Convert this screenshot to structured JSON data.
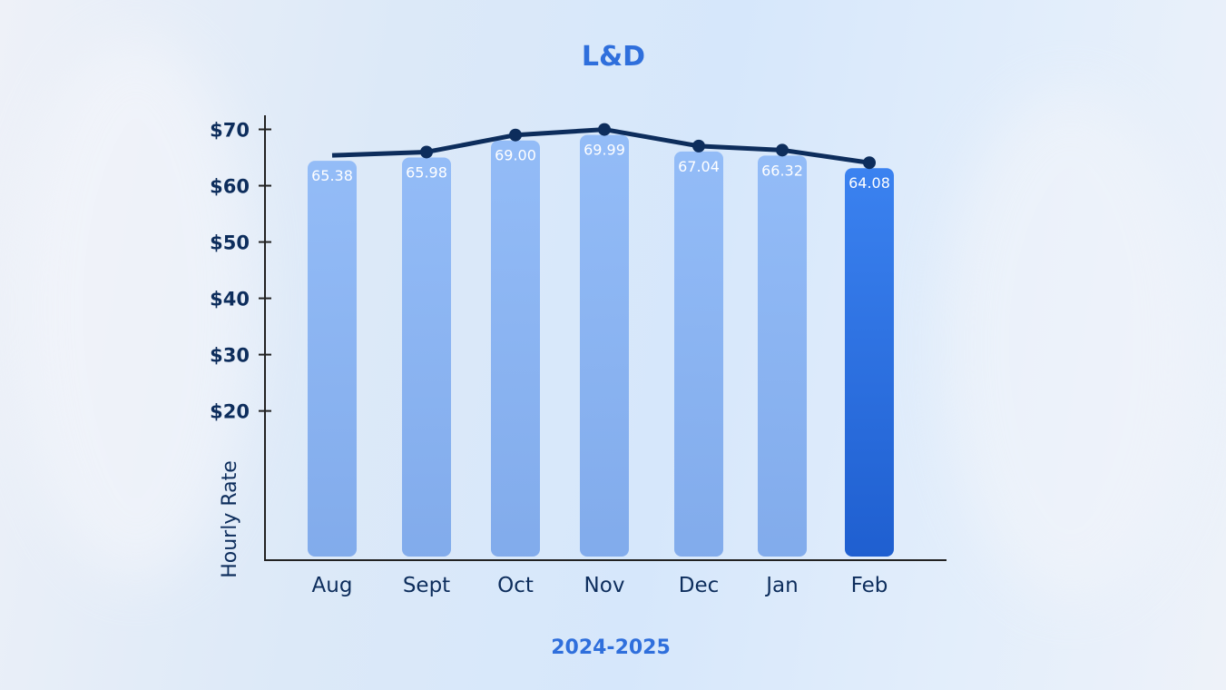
{
  "chart_data": {
    "type": "bar",
    "title": "L&D",
    "xlabel": "2024-2025",
    "ylabel": "Hourly Rate",
    "categories": [
      "Aug",
      "Sept",
      "Oct",
      "Nov",
      "Dec",
      "Jan",
      "Feb"
    ],
    "values": [
      65.38,
      65.98,
      69.0,
      69.99,
      67.04,
      66.32,
      64.08
    ],
    "data_labels": [
      "65.38",
      "65.98",
      "69.00",
      "69.99",
      "67.04",
      "66.32",
      "64.08"
    ],
    "overlay_line": {
      "type": "line",
      "values": [
        65.38,
        65.98,
        69.0,
        69.99,
        67.04,
        66.32,
        64.08
      ]
    },
    "yticks": [
      20,
      30,
      40,
      50,
      60,
      70
    ],
    "ytick_labels": [
      "$20",
      "$30",
      "$40",
      "$50",
      "$60",
      "$70"
    ],
    "ylim": [
      -6.5,
      72.5
    ],
    "grid": false,
    "legend": "none",
    "colors": {
      "bar": "#86b2f5",
      "highlight_bar": "#2f74e6",
      "line": "#0d2d5c",
      "title": "#2f6fdc",
      "text": "#0d2d5c"
    },
    "highlight_index": 6
  }
}
